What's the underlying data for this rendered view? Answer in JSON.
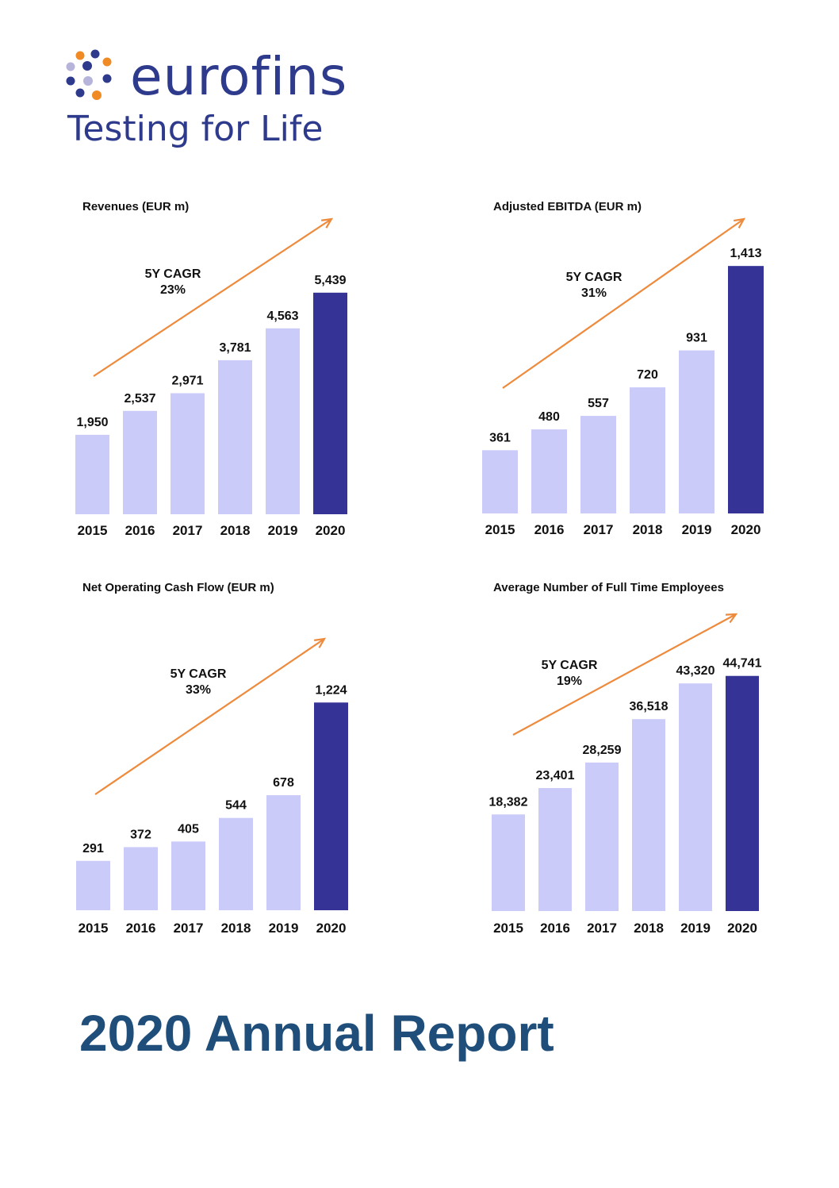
{
  "logo": {
    "name": "eurofins",
    "tagline": "Testing for Life",
    "colors": {
      "blue": "#2e3a8c",
      "orange": "#f08a24",
      "lilac": "#b6b4db"
    }
  },
  "colors": {
    "bar_light": "#cbcbf9",
    "bar_dark": "#353396",
    "arrow": "#ee8a3c",
    "title_blue": "#1f4e7a"
  },
  "report_title": "2020 Annual Report",
  "chart_data": [
    {
      "type": "bar",
      "title": "Revenues (EUR m)",
      "categories": [
        "2015",
        "2016",
        "2017",
        "2018",
        "2019",
        "2020"
      ],
      "values": [
        1950,
        2537,
        2971,
        3781,
        4563,
        5439
      ],
      "value_labels": [
        "1,950",
        "2,537",
        "2,971",
        "3,781",
        "4,563",
        "5,439"
      ],
      "cagr_label": "5Y CAGR",
      "cagr_value": "23%",
      "ylim": [
        0,
        6000
      ],
      "grid": false,
      "highlight_last": true
    },
    {
      "type": "bar",
      "title": "Adjusted EBITDA (EUR m)",
      "categories": [
        "2015",
        "2016",
        "2017",
        "2018",
        "2019",
        "2020"
      ],
      "values": [
        361,
        480,
        557,
        720,
        931,
        1413
      ],
      "value_labels": [
        "361",
        "480",
        "557",
        "720",
        "931",
        "1,413"
      ],
      "cagr_label": "5Y CAGR",
      "cagr_value": "31%",
      "ylim": [
        0,
        1450
      ],
      "grid": false,
      "highlight_last": true
    },
    {
      "type": "bar",
      "title": "Net Operating Cash Flow (EUR m)",
      "categories": [
        "2015",
        "2016",
        "2017",
        "2018",
        "2019",
        "2020"
      ],
      "values": [
        291,
        372,
        405,
        544,
        678,
        1224
      ],
      "value_labels": [
        "291",
        "372",
        "405",
        "544",
        "678",
        "1,224"
      ],
      "cagr_label": "5Y CAGR",
      "cagr_value": "33%",
      "ylim": [
        0,
        1300
      ],
      "grid": false,
      "highlight_last": true
    },
    {
      "type": "bar",
      "title": "Average Number of Full Time Employees",
      "categories": [
        "2015",
        "2016",
        "2017",
        "2018",
        "2019",
        "2020"
      ],
      "values": [
        18382,
        23401,
        28259,
        36518,
        43320,
        44741
      ],
      "value_labels": [
        "18,382",
        "23,401",
        "28,259",
        "36,518",
        "43,320",
        "44,741"
      ],
      "cagr_label": "5Y CAGR",
      "cagr_value": "19%",
      "ylim": [
        0,
        45000
      ],
      "grid": false,
      "highlight_last": true
    }
  ]
}
